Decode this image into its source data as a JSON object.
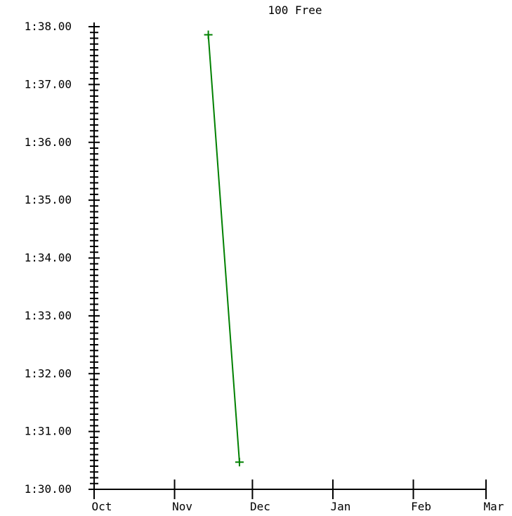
{
  "chart_data": {
    "type": "line",
    "title": "100 Free",
    "xlabel": "",
    "ylabel": "",
    "x_tick_labels": [
      "Oct",
      "Nov",
      "Dec",
      "Jan",
      "Feb",
      "Mar"
    ],
    "x_range": [
      "Oct",
      "Mar"
    ],
    "y_tick_labels": [
      "1:30.00",
      "1:31.00",
      "1:32.00",
      "1:33.00",
      "1:34.00",
      "1:35.00",
      "1:36.00",
      "1:37.00",
      "1:38.00"
    ],
    "ylim": [
      90,
      98
    ],
    "grid": false,
    "series": [
      {
        "color": "#008000",
        "points": [
          {
            "date": "Nov 14",
            "time": "1:37.86"
          },
          {
            "date": "Nov 26",
            "time": "1:30.47"
          }
        ]
      }
    ]
  }
}
